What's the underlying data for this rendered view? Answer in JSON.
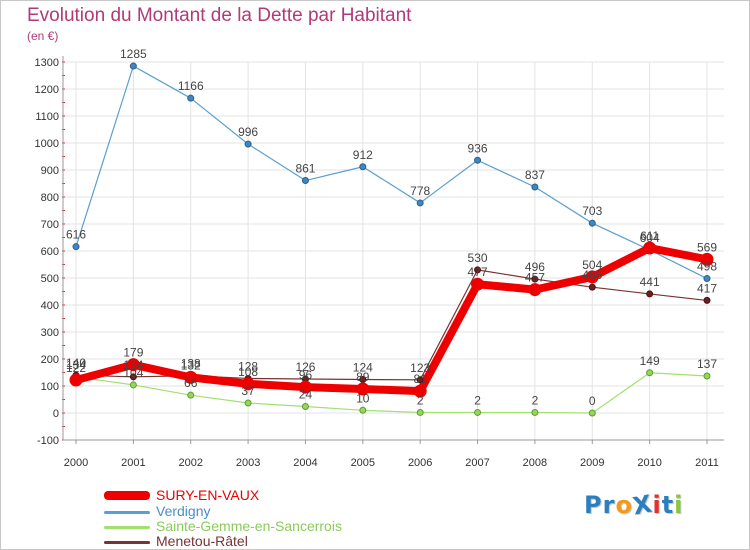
{
  "title": "Evolution du Montant de la Dette par Habitant",
  "unit": "(en €)",
  "logo": {
    "text": "ProXiti",
    "letters": [
      {
        "ch": "P",
        "color": "#2b7fc0"
      },
      {
        "ch": "r",
        "color": "#2b7fc0"
      },
      {
        "ch": "o",
        "color": "#f39a1e"
      },
      {
        "ch": "X",
        "color": "#2b7fc0"
      },
      {
        "ch": "i",
        "color": "#e2312c"
      },
      {
        "ch": "t",
        "color": "#2b7fc0"
      },
      {
        "ch": "i",
        "color": "#8cc63f"
      }
    ]
  },
  "chart_data": {
    "type": "line",
    "title": "Evolution du Montant de la Dette par Habitant",
    "ylabel": "(en €)",
    "xlabel": "",
    "x": [
      "2000",
      "2001",
      "2002",
      "2003",
      "2004",
      "2005",
      "2006",
      "2007",
      "2008",
      "2009",
      "2010",
      "2011"
    ],
    "ylim": [
      -100,
      1300
    ],
    "yticks": [
      "-100",
      "0",
      "100",
      "200",
      "300",
      "400",
      "500",
      "600",
      "700",
      "800",
      "900",
      "1000",
      "1100",
      "1200",
      "1300"
    ],
    "grid": true,
    "legend_position": "bottom",
    "series": [
      {
        "name": "SURY-EN-VAUX",
        "color": "#ee0000",
        "values": [
          122,
          179,
          132,
          108,
          96,
          89,
          81,
          477,
          457,
          504,
          611,
          569
        ]
      },
      {
        "name": "Verdigny",
        "color": "#5b9fd0",
        "values": [
          616,
          1285,
          1166,
          996,
          861,
          912,
          778,
          936,
          837,
          703,
          604,
          498
        ]
      },
      {
        "name": "Sainte-Gemme-en-Sancerrois",
        "color": "#a2e06f",
        "values": [
          134,
          104,
          66,
          37,
          24,
          10,
          2,
          2,
          2,
          0,
          149,
          137
        ]
      },
      {
        "name": "Menetou-Râtel",
        "color": "#7a3232",
        "values": [
          140,
          134,
          138,
          128,
          126,
          124,
          123,
          530,
          496,
          466,
          441,
          417
        ]
      }
    ]
  }
}
